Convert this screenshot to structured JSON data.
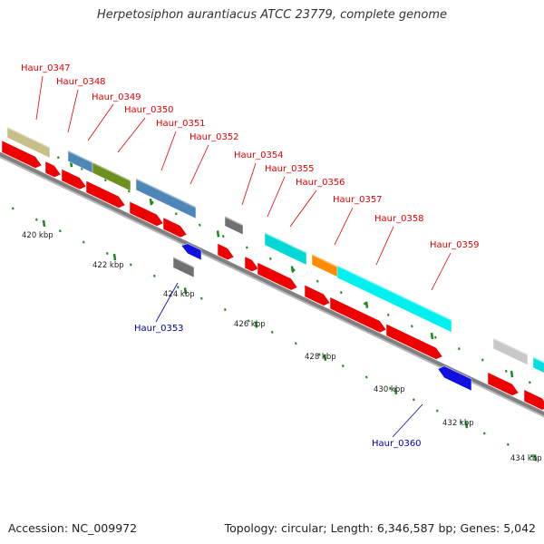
{
  "title": "Herpetosiphon aurantiacus ATCC 23779, complete genome",
  "footer": {
    "accession": "Accession: NC_009972",
    "summary": "Topology: circular; Length: 6,346,587 bp; Genes: 5,042"
  },
  "scale_labels": [
    "420 kbp",
    "422 kbp",
    "424 kbp",
    "426 kbp",
    "428 kbp",
    "430 kbp",
    "432 kbp",
    "434 kbp"
  ],
  "gene_labels": [
    {
      "text": "Haur_0347",
      "strand": "forward"
    },
    {
      "text": "Haur_0348",
      "strand": "forward"
    },
    {
      "text": "Haur_0349",
      "strand": "forward"
    },
    {
      "text": "Haur_0350",
      "strand": "forward"
    },
    {
      "text": "Haur_0351",
      "strand": "forward"
    },
    {
      "text": "Haur_0352",
      "strand": "forward"
    },
    {
      "text": "Haur_0353",
      "strand": "reverse"
    },
    {
      "text": "Haur_0354",
      "strand": "forward"
    },
    {
      "text": "Haur_0355",
      "strand": "forward"
    },
    {
      "text": "Haur_0356",
      "strand": "forward"
    },
    {
      "text": "Haur_0357",
      "strand": "forward"
    },
    {
      "text": "Haur_0358",
      "strand": "forward"
    },
    {
      "text": "Haur_0359",
      "strand": "forward"
    },
    {
      "text": "Haur_0360",
      "strand": "reverse"
    }
  ],
  "colors": {
    "forward_label": "#e00000",
    "reverse_label": "#0000aa",
    "tick": "#1a8a1a",
    "backbone": "#808080",
    "cds_arrow": "#ee0000",
    "reverse_gene": "#1010e0"
  }
}
